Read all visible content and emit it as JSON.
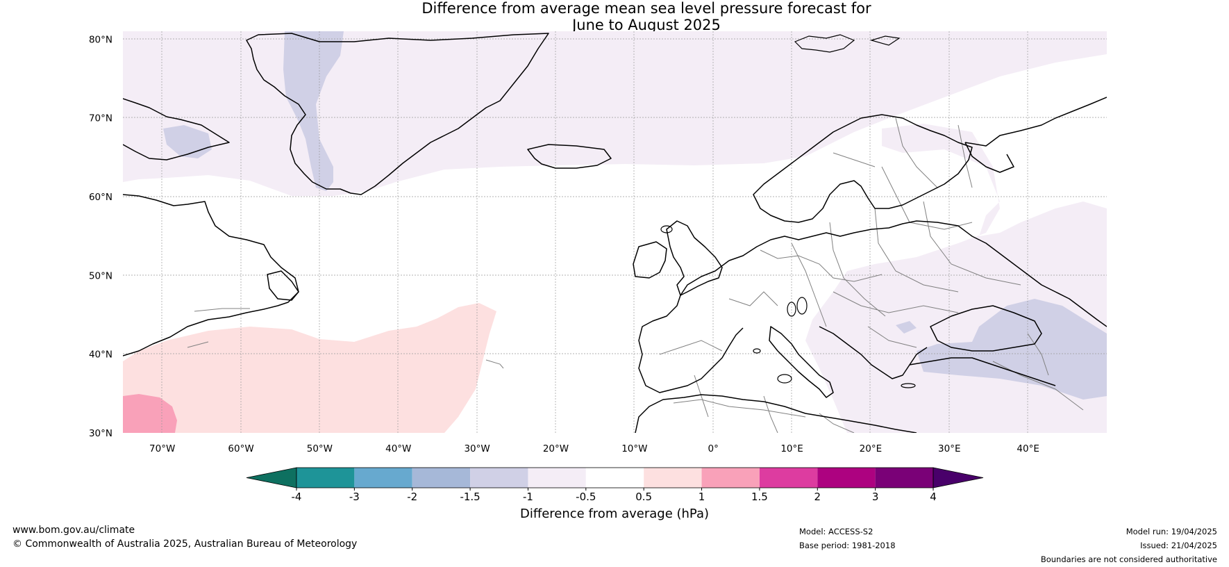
{
  "title_line1": "Difference from average mean sea level pressure forecast for",
  "title_line2": "June to August 2025",
  "map": {
    "lon_range": [
      -75,
      50
    ],
    "lat_range": [
      30,
      81
    ],
    "lat_ticks": [
      {
        "value": 30,
        "label": "30°N"
      },
      {
        "value": 40,
        "label": "40°N"
      },
      {
        "value": 50,
        "label": "50°N"
      },
      {
        "value": 60,
        "label": "60°N"
      },
      {
        "value": 70,
        "label": "70°N"
      },
      {
        "value": 80,
        "label": "80°N"
      }
    ],
    "lon_ticks": [
      {
        "value": -70,
        "label": "70°W"
      },
      {
        "value": -60,
        "label": "60°W"
      },
      {
        "value": -50,
        "label": "50°W"
      },
      {
        "value": -40,
        "label": "40°W"
      },
      {
        "value": -30,
        "label": "30°W"
      },
      {
        "value": -20,
        "label": "20°W"
      },
      {
        "value": -10,
        "label": "10°W"
      },
      {
        "value": 0,
        "label": "0°"
      },
      {
        "value": 10,
        "label": "10°E"
      },
      {
        "value": 20,
        "label": "20°E"
      },
      {
        "value": 30,
        "label": "30°E"
      },
      {
        "value": 40,
        "label": "40°E"
      }
    ]
  },
  "legend": {
    "title": "Difference from average (hPa)",
    "colors": [
      "#0e7060",
      "#1e9498",
      "#67a9cf",
      "#a6b8d8",
      "#d0d0e6",
      "#f4edf6",
      "#ffffff",
      "#fde0e0",
      "#f9a1b9",
      "#dd3ca0",
      "#ad0280",
      "#7a0177",
      "#49006a"
    ],
    "tick_labels": [
      "-4",
      "-3",
      "-2",
      "-1.5",
      "-1",
      "-0.5",
      "0.5",
      "1",
      "1.5",
      "2",
      "3",
      "4"
    ]
  },
  "footer": {
    "website": "www.bom.gov.au/climate",
    "copyright": "© Commonwealth of Australia 2025, Australian Bureau of Meteorology",
    "model": "Model: ACCESS-S2",
    "base_period": "Base period: 1981-2018",
    "model_run": "Model run: 19/04/2025",
    "issued": "Issued: 21/04/2025",
    "disclaimer": "Boundaries are not considered authoritative"
  },
  "colors": {
    "land_outline": "#000000",
    "border": "#808080",
    "grid": "#999999"
  }
}
